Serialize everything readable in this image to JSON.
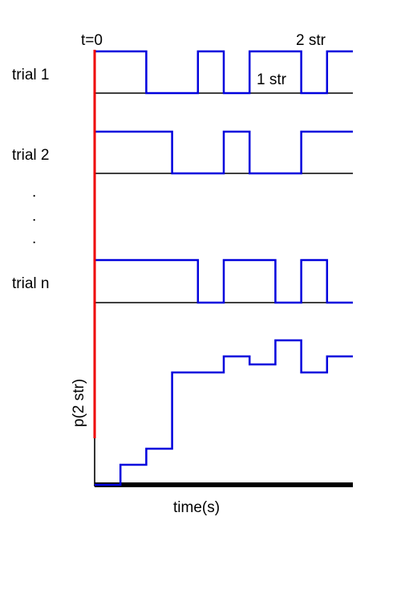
{
  "labels": {
    "t0": "t=0",
    "trial_1": "trial 1",
    "trial_2": "trial 2",
    "ellipsis": ".",
    "trial_n": "trial n",
    "state_low": "1 str",
    "state_high": "2 str",
    "y_axis": "p(2 str)",
    "x_axis": "time(s)"
  },
  "colors": {
    "trace": "#0000dd",
    "time_zero_marker": "#ee0000",
    "baseline": "#000000"
  },
  "chart_data": {
    "type": "line",
    "traces": [
      {
        "label": "trial 1",
        "transitions": [
          0,
          2,
          4,
          5,
          6,
          8,
          9
        ],
        "end": 10
      },
      {
        "label": "trial 2",
        "transitions": [
          0,
          3,
          5,
          6,
          8
        ],
        "end": 10
      },
      {
        "label": "trial n",
        "transitions": [
          0,
          4,
          5,
          7,
          8,
          9
        ],
        "end": 10
      }
    ],
    "probability": {
      "x": [
        0,
        1,
        2,
        3,
        5,
        6,
        7,
        8,
        9,
        10
      ],
      "y": [
        0,
        0.125,
        0.225,
        0.7,
        0.8,
        0.75,
        0.9,
        0.7,
        0.8,
        0.8
      ]
    },
    "xlim": [
      0,
      10
    ]
  }
}
